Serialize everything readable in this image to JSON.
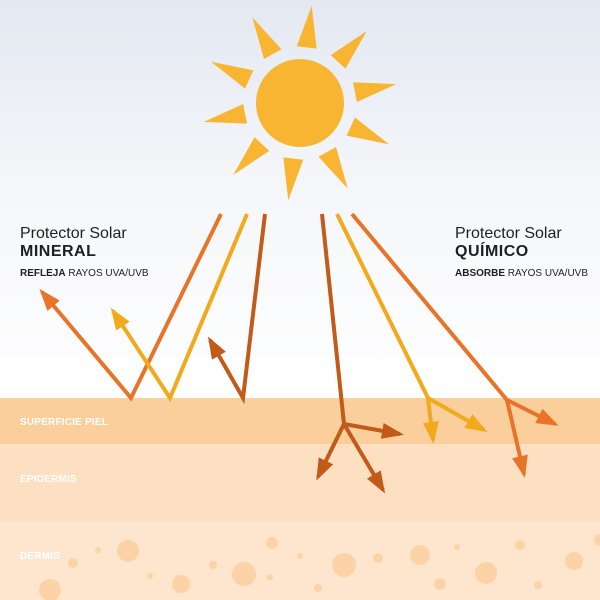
{
  "mineral": {
    "title": "Protector Solar",
    "name": "MINERAL",
    "action": "REFLEJA",
    "rays": "RAYOS UVA/UVB"
  },
  "chemical": {
    "title": "Protector Solar",
    "name": "QUÍMICO",
    "action": "ABSORBE",
    "rays": "RAYOS UVA/UVB"
  },
  "layers": {
    "surface": "SUPERFICIE PIEL",
    "epidermis": "EPIDERMIS",
    "dermis": "DERMIS"
  },
  "icons": {
    "sun": "sun-icon"
  },
  "colors": {
    "sun": "#f7b531",
    "ray_dark": "#c25a1a",
    "ray_orange": "#e8742a",
    "ray_yellow": "#f2a91c",
    "surface": "#fbcf9c",
    "epidermis": "#fde0c1",
    "dermis": "#fde6cd",
    "bubble": "#fbd3a6"
  }
}
